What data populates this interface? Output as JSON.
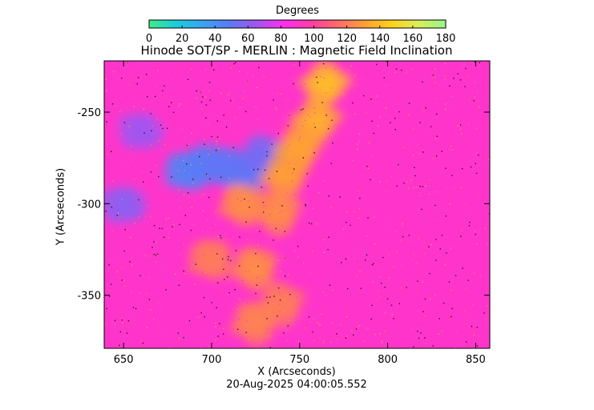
{
  "colorbar": {
    "label": "Degrees",
    "ticks": [
      "0",
      "20",
      "40",
      "60",
      "80",
      "100",
      "120",
      "140",
      "160",
      "180"
    ],
    "range": [
      0,
      180
    ],
    "colormap": [
      "#40ec88",
      "#19ccdc",
      "#3aa3f4",
      "#5d78f6",
      "#a354f0",
      "#ff2df0",
      "#ff3ca6",
      "#ff6a6c",
      "#ffa033",
      "#ffd21a",
      "#d8ee58",
      "#94f88a"
    ]
  },
  "footer": {
    "timestamp": "20-Aug-2025 04:00:05.552"
  },
  "chart_data": {
    "type": "heatmap",
    "title": "Hinode SOT/SP - MERLIN : Magnetic Field Inclination",
    "xlabel": "X (Arcseconds)",
    "ylabel": "Y (Arcseconds)",
    "xlim": [
      639,
      858
    ],
    "ylim": [
      -379,
      -222
    ],
    "xticks": [
      650,
      700,
      750,
      800,
      850
    ],
    "xtick_labels": [
      "650",
      "700",
      "750",
      "800",
      "850"
    ],
    "yticks": [
      -250,
      -300,
      -350
    ],
    "ytick_labels": [
      "-250",
      "-300",
      "-350"
    ],
    "value_unit": "Degrees",
    "background_value": 90,
    "regions": [
      {
        "x": 686,
        "y": -282,
        "value": 45
      },
      {
        "x": 698,
        "y": -278,
        "value": 48
      },
      {
        "x": 710,
        "y": -280,
        "value": 50
      },
      {
        "x": 720,
        "y": -283,
        "value": 50
      },
      {
        "x": 730,
        "y": -274,
        "value": 55
      },
      {
        "x": 650,
        "y": -300,
        "value": 60
      },
      {
        "x": 660,
        "y": -260,
        "value": 65
      },
      {
        "x": 765,
        "y": -235,
        "value": 140
      },
      {
        "x": 760,
        "y": -255,
        "value": 135
      },
      {
        "x": 750,
        "y": -270,
        "value": 132
      },
      {
        "x": 742,
        "y": -285,
        "value": 130
      },
      {
        "x": 738,
        "y": -305,
        "value": 125
      },
      {
        "x": 718,
        "y": -300,
        "value": 125
      },
      {
        "x": 700,
        "y": -330,
        "value": 120
      },
      {
        "x": 725,
        "y": -335,
        "value": 125
      },
      {
        "x": 740,
        "y": -355,
        "value": 120
      },
      {
        "x": 725,
        "y": -365,
        "value": 122
      }
    ]
  }
}
